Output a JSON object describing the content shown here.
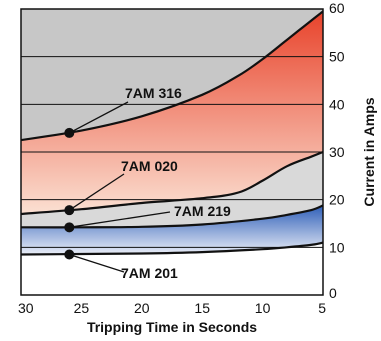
{
  "chart_data": {
    "type": "line",
    "title": "",
    "xlabel": "Tripping Time in Seconds",
    "ylabel": "Current in Amps",
    "x_ticks": [
      30,
      25,
      20,
      15,
      10,
      5
    ],
    "y_ticks": [
      0,
      10,
      20,
      30,
      40,
      50,
      60
    ],
    "xlim": [
      30,
      5
    ],
    "ylim": [
      0,
      60
    ],
    "grid_y": true,
    "colors": {
      "band_top": "#c7c7c7",
      "red_band_top": "#e8432b",
      "red_band_bottom": "#fbe0d2",
      "blue_band_top": "#2f5fb8",
      "blue_band_bottom": "#eaeef7",
      "gray_band": "#d9d9d9",
      "curve": "#111111",
      "grid": "#111111"
    },
    "series": [
      {
        "name": "7AM 316",
        "x": [
          30,
          25,
          20,
          15,
          12,
          10,
          8,
          7,
          6,
          5
        ],
        "y": [
          32.5,
          34.5,
          37.5,
          42,
          46,
          49.5,
          53.5,
          55.5,
          57.5,
          59.5
        ],
        "marker": {
          "x": 26,
          "y": 34
        }
      },
      {
        "name": "7AM 020",
        "x": [
          30,
          25,
          20,
          15,
          12,
          10,
          8,
          6,
          5
        ],
        "y": [
          17,
          18,
          19.3,
          20.3,
          21.5,
          24,
          27,
          29,
          30
        ],
        "marker": {
          "x": 26,
          "y": 17.8
        }
      },
      {
        "name": "7AM 219",
        "x": [
          30,
          25,
          20,
          15,
          10,
          8,
          6,
          5
        ],
        "y": [
          14.2,
          14.2,
          14.3,
          14.8,
          16,
          16.8,
          17.8,
          18.8
        ],
        "marker": {
          "x": 26,
          "y": 14.2
        }
      },
      {
        "name": "7AM 201",
        "x": [
          30,
          25,
          20,
          15,
          10,
          8,
          6,
          5
        ],
        "y": [
          8.5,
          8.6,
          8.7,
          9,
          9.6,
          10,
          10.5,
          11
        ],
        "marker": {
          "x": 26,
          "y": 8.5
        }
      }
    ]
  }
}
